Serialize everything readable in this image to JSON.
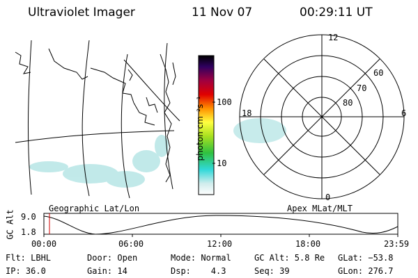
{
  "header": {
    "instrument": "Ultraviolet Imager",
    "date": "11 Nov 07",
    "time": "00:29:11 UT"
  },
  "colorbar": {
    "unit_label": "photon cm⁻²s⁻¹",
    "ticks": [
      "100",
      "10"
    ]
  },
  "polar": {
    "mlt_labels": [
      "12",
      "18",
      "6",
      "0"
    ],
    "lat_labels": [
      "60",
      "70",
      "80"
    ]
  },
  "altitude_panel": {
    "left_title": "Geographic Lat/Lon",
    "right_title": "Apex MLat/MLT",
    "y_label": "GC Alt",
    "y_ticks": [
      "9.0",
      "1.8"
    ],
    "x_ticks": [
      "00:00",
      "06:00",
      "12:00",
      "18:00",
      "23:59"
    ]
  },
  "status": {
    "filter": "Flt: LBHL",
    "ip": "IP: 36.0",
    "door": "Door: Open",
    "gain": "Gain: 14",
    "mode": "Mode: Normal",
    "dsp": "Dsp:    4.3",
    "gc_alt": "GC Alt: 5.8 Re",
    "seq": "Seq: 39",
    "glat": "GLat: −53.8",
    "glon": "GLon: 276.7"
  },
  "colors": {
    "marker": "#d00000",
    "aurora": "#8fd8d8"
  }
}
